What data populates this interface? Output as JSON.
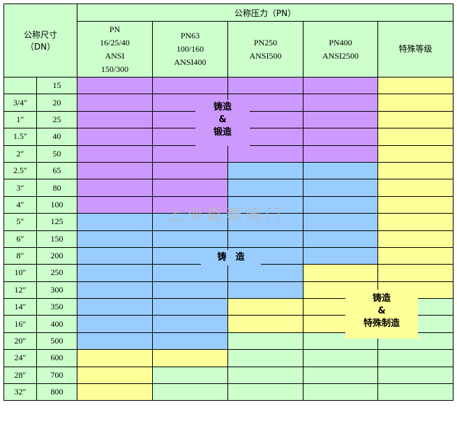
{
  "header": {
    "size_label": "公称尺寸",
    "size_unit": "（DN）",
    "pressure_label": "公称压力（PN）",
    "columns": [
      [
        "PN",
        "16/25/40",
        "ANSI",
        "150/300"
      ],
      [
        "PN63",
        "100/160",
        "ANSI400"
      ],
      [
        "PN250",
        "ANSI500"
      ],
      [
        "PN400",
        "ANSI2500"
      ],
      [
        "特殊等级"
      ]
    ]
  },
  "colors": {
    "P": "#CC99FF",
    "B": "#99CCFF",
    "Y": "#FFFF99",
    "G": "#CCFFCC"
  },
  "legend": {
    "P": "铸造&锻造",
    "B": "铸造",
    "Y": "铸造&特殊制造"
  },
  "rows": [
    {
      "inch": "",
      "dn": "15",
      "cells": "PPPPY"
    },
    {
      "inch": "3/4″",
      "dn": "20",
      "cells": "PPPPY"
    },
    {
      "inch": "1″",
      "dn": "25",
      "cells": "PPPPY"
    },
    {
      "inch": "1.5″",
      "dn": "40",
      "cells": "PPPPY"
    },
    {
      "inch": "2″",
      "dn": "50",
      "cells": "PPPPY"
    },
    {
      "inch": "2.5″",
      "dn": "65",
      "cells": "PPBBY"
    },
    {
      "inch": "3″",
      "dn": "80",
      "cells": "PPBBY"
    },
    {
      "inch": "4″",
      "dn": "100",
      "cells": "PPBBY"
    },
    {
      "inch": "5″",
      "dn": "125",
      "cells": "BBBBY"
    },
    {
      "inch": "6″",
      "dn": "150",
      "cells": "BBBBY"
    },
    {
      "inch": "8″",
      "dn": "200",
      "cells": "BBBBY"
    },
    {
      "inch": "10″",
      "dn": "250",
      "cells": "BBBYY"
    },
    {
      "inch": "12″",
      "dn": "300",
      "cells": "BBBYY"
    },
    {
      "inch": "14″",
      "dn": "350",
      "cells": "BBYYG"
    },
    {
      "inch": "16″",
      "dn": "400",
      "cells": "BBYYG"
    },
    {
      "inch": "20″",
      "dn": "500",
      "cells": "BBGGG"
    },
    {
      "inch": "24″",
      "dn": "600",
      "cells": "YYGGG"
    },
    {
      "inch": "28″",
      "dn": "700",
      "cells": "YGGGG"
    },
    {
      "inch": "32″",
      "dn": "800",
      "cells": "YGGGG"
    }
  ],
  "labels": {
    "forged": [
      "铸造",
      "&",
      "锻造"
    ],
    "cast": "铸　造",
    "special": [
      "铸造",
      "&",
      "特殊制造"
    ]
  },
  "watermark": "上海嘉泰阀门"
}
